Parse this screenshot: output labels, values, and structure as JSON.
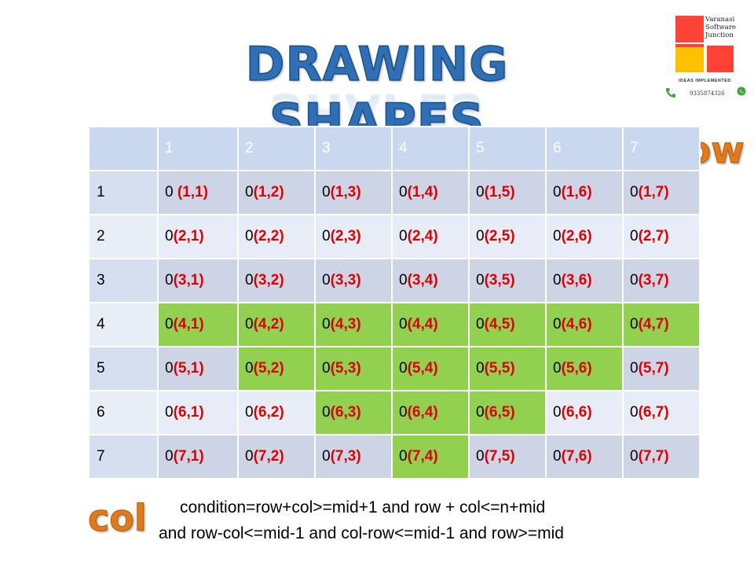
{
  "title": "DRAWING SHAPES",
  "logo": {
    "name_lines": [
      "Varanasi",
      "Software",
      "Junction"
    ],
    "tagline": "IDEAS IMPLEMENTED",
    "phone": "9335874326",
    "colors": {
      "red": "#ff4136",
      "yellow": "#ffc000",
      "green": "#44aa44"
    }
  },
  "axis_labels": {
    "row": "row",
    "col": "col"
  },
  "table": {
    "column_headers": [
      "",
      "1",
      "2",
      "3",
      "4",
      "5",
      "6",
      "7"
    ],
    "rows": [
      {
        "label": "1",
        "cells": [
          "(1,1)",
          "(1,2)",
          "(1,3)",
          "(1,4)",
          "(1,5)",
          "(1,6)",
          "(1,7)"
        ],
        "highlight": [
          0,
          0,
          0,
          0,
          0,
          0,
          0
        ]
      },
      {
        "label": "2",
        "cells": [
          "(2,1)",
          "(2,2)",
          "(2,3)",
          "(2,4)",
          "(2,5)",
          "(2,6)",
          "(2,7)"
        ],
        "highlight": [
          0,
          0,
          0,
          0,
          0,
          0,
          0
        ]
      },
      {
        "label": "3",
        "cells": [
          "(3,1)",
          "(3,2)",
          "(3,3)",
          "(3,4)",
          "(3,5)",
          "(3,6)",
          "(3,7)"
        ],
        "highlight": [
          0,
          0,
          0,
          0,
          0,
          0,
          0
        ]
      },
      {
        "label": "4",
        "cells": [
          "(4,1)",
          "(4,2)",
          "(4,3)",
          "(4,4)",
          "(4,5)",
          "(4,6)",
          "(4,7)"
        ],
        "highlight": [
          1,
          1,
          1,
          1,
          1,
          1,
          1
        ]
      },
      {
        "label": "5",
        "cells": [
          "(5,1)",
          "(5,2)",
          "(5,3)",
          "(5,4)",
          "(5,5)",
          "(5,6)",
          "(5,7)"
        ],
        "highlight": [
          0,
          1,
          1,
          1,
          1,
          1,
          0
        ]
      },
      {
        "label": "6",
        "cells": [
          "(6,1)",
          "(6,2)",
          "(6,3)",
          "(6,4)",
          "(6,5)",
          "(6,6)",
          "(6,7)"
        ],
        "highlight": [
          0,
          0,
          1,
          1,
          1,
          0,
          0
        ]
      },
      {
        "label": "7",
        "cells": [
          "(7,1)",
          "(7,2)",
          "(7,3)",
          "(7,4)",
          "(7,5)",
          "(7,6)",
          "(7,7)"
        ],
        "highlight": [
          0,
          0,
          0,
          1,
          0,
          0,
          0
        ]
      }
    ],
    "cell_prefix": "0",
    "colors": {
      "highlight": "#92d050",
      "coord": "#e00000"
    }
  },
  "condition": {
    "line1": "condition=row+col>=mid+1 and row + col<=n+mid",
    "line2": "and row-col<=mid-1 and col-row<=mid-1 and row>=mid"
  }
}
